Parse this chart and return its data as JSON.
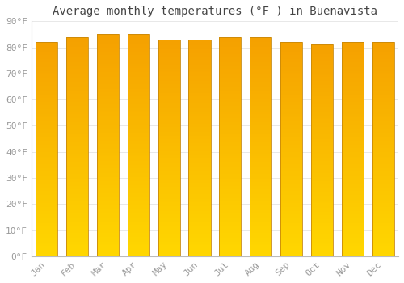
{
  "title": "Average monthly temperatures (°F ) in Buenavista",
  "months": [
    "Jan",
    "Feb",
    "Mar",
    "Apr",
    "May",
    "Jun",
    "Jul",
    "Aug",
    "Sep",
    "Oct",
    "Nov",
    "Dec"
  ],
  "values": [
    82,
    84,
    85,
    85,
    83,
    83,
    84,
    84,
    82,
    81,
    82,
    82
  ],
  "bar_color_bottom": "#FFD700",
  "bar_color_top": "#F5A000",
  "bar_border_color": "#C8880A",
  "background_color": "#FFFFFF",
  "grid_color": "#E8E8E8",
  "text_color": "#999999",
  "ylim": [
    0,
    90
  ],
  "yticks": [
    0,
    10,
    20,
    30,
    40,
    50,
    60,
    70,
    80,
    90
  ],
  "ytick_labels": [
    "0°F",
    "10°F",
    "20°F",
    "30°F",
    "40°F",
    "50°F",
    "60°F",
    "70°F",
    "80°F",
    "90°F"
  ],
  "title_fontsize": 10,
  "tick_fontsize": 8,
  "bar_width": 0.72
}
